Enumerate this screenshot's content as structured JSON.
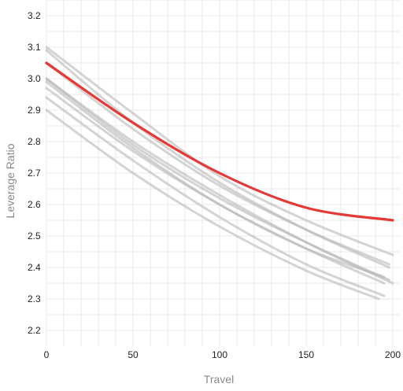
{
  "chart_data": {
    "type": "line",
    "title": "",
    "xlabel": "Travel",
    "ylabel": "Leverage Ratio",
    "xlim": [
      0,
      200
    ],
    "ylim": [
      2.15,
      3.25
    ],
    "x_ticks": [
      0,
      50,
      100,
      150,
      200
    ],
    "y_ticks": [
      2.2,
      2.3,
      2.4,
      2.5,
      2.6,
      2.7,
      2.8,
      2.9,
      3.0,
      3.1,
      3.2
    ],
    "grid": true,
    "legend": "none",
    "highlight_color": "#e53935",
    "background_series_color": "#b8b8b8",
    "series": [
      {
        "x": [
          0,
          50,
          100,
          150,
          200
        ],
        "values": [
          3.05,
          2.86,
          2.7,
          2.59,
          2.55
        ],
        "highlight": true
      },
      {
        "x": [
          0,
          50,
          100,
          150,
          200
        ],
        "values": [
          3.1,
          2.89,
          2.69,
          2.55,
          2.44
        ]
      },
      {
        "x": [
          0,
          50,
          100,
          150,
          198
        ],
        "values": [
          3.09,
          2.86,
          2.67,
          2.52,
          2.4
        ]
      },
      {
        "x": [
          0,
          50,
          100,
          150,
          198
        ],
        "values": [
          3.05,
          2.84,
          2.66,
          2.52,
          2.41
        ]
      },
      {
        "x": [
          0,
          50,
          100,
          150,
          200
        ],
        "values": [
          3.0,
          2.8,
          2.63,
          2.48,
          2.35
        ]
      },
      {
        "x": [
          0,
          50,
          100,
          150,
          198
        ],
        "values": [
          3.0,
          2.79,
          2.62,
          2.48,
          2.36
        ]
      },
      {
        "x": [
          0,
          50,
          100,
          150,
          195
        ],
        "values": [
          2.99,
          2.78,
          2.6,
          2.46,
          2.37
        ]
      },
      {
        "x": [
          0,
          50,
          100,
          150,
          195
        ],
        "values": [
          2.97,
          2.77,
          2.6,
          2.46,
          2.35
        ]
      },
      {
        "x": [
          0,
          50,
          100,
          150,
          195
        ],
        "values": [
          2.94,
          2.74,
          2.56,
          2.41,
          2.31
        ]
      },
      {
        "x": [
          0,
          50,
          100,
          150,
          192
        ],
        "values": [
          2.9,
          2.7,
          2.53,
          2.39,
          2.3
        ]
      }
    ]
  }
}
